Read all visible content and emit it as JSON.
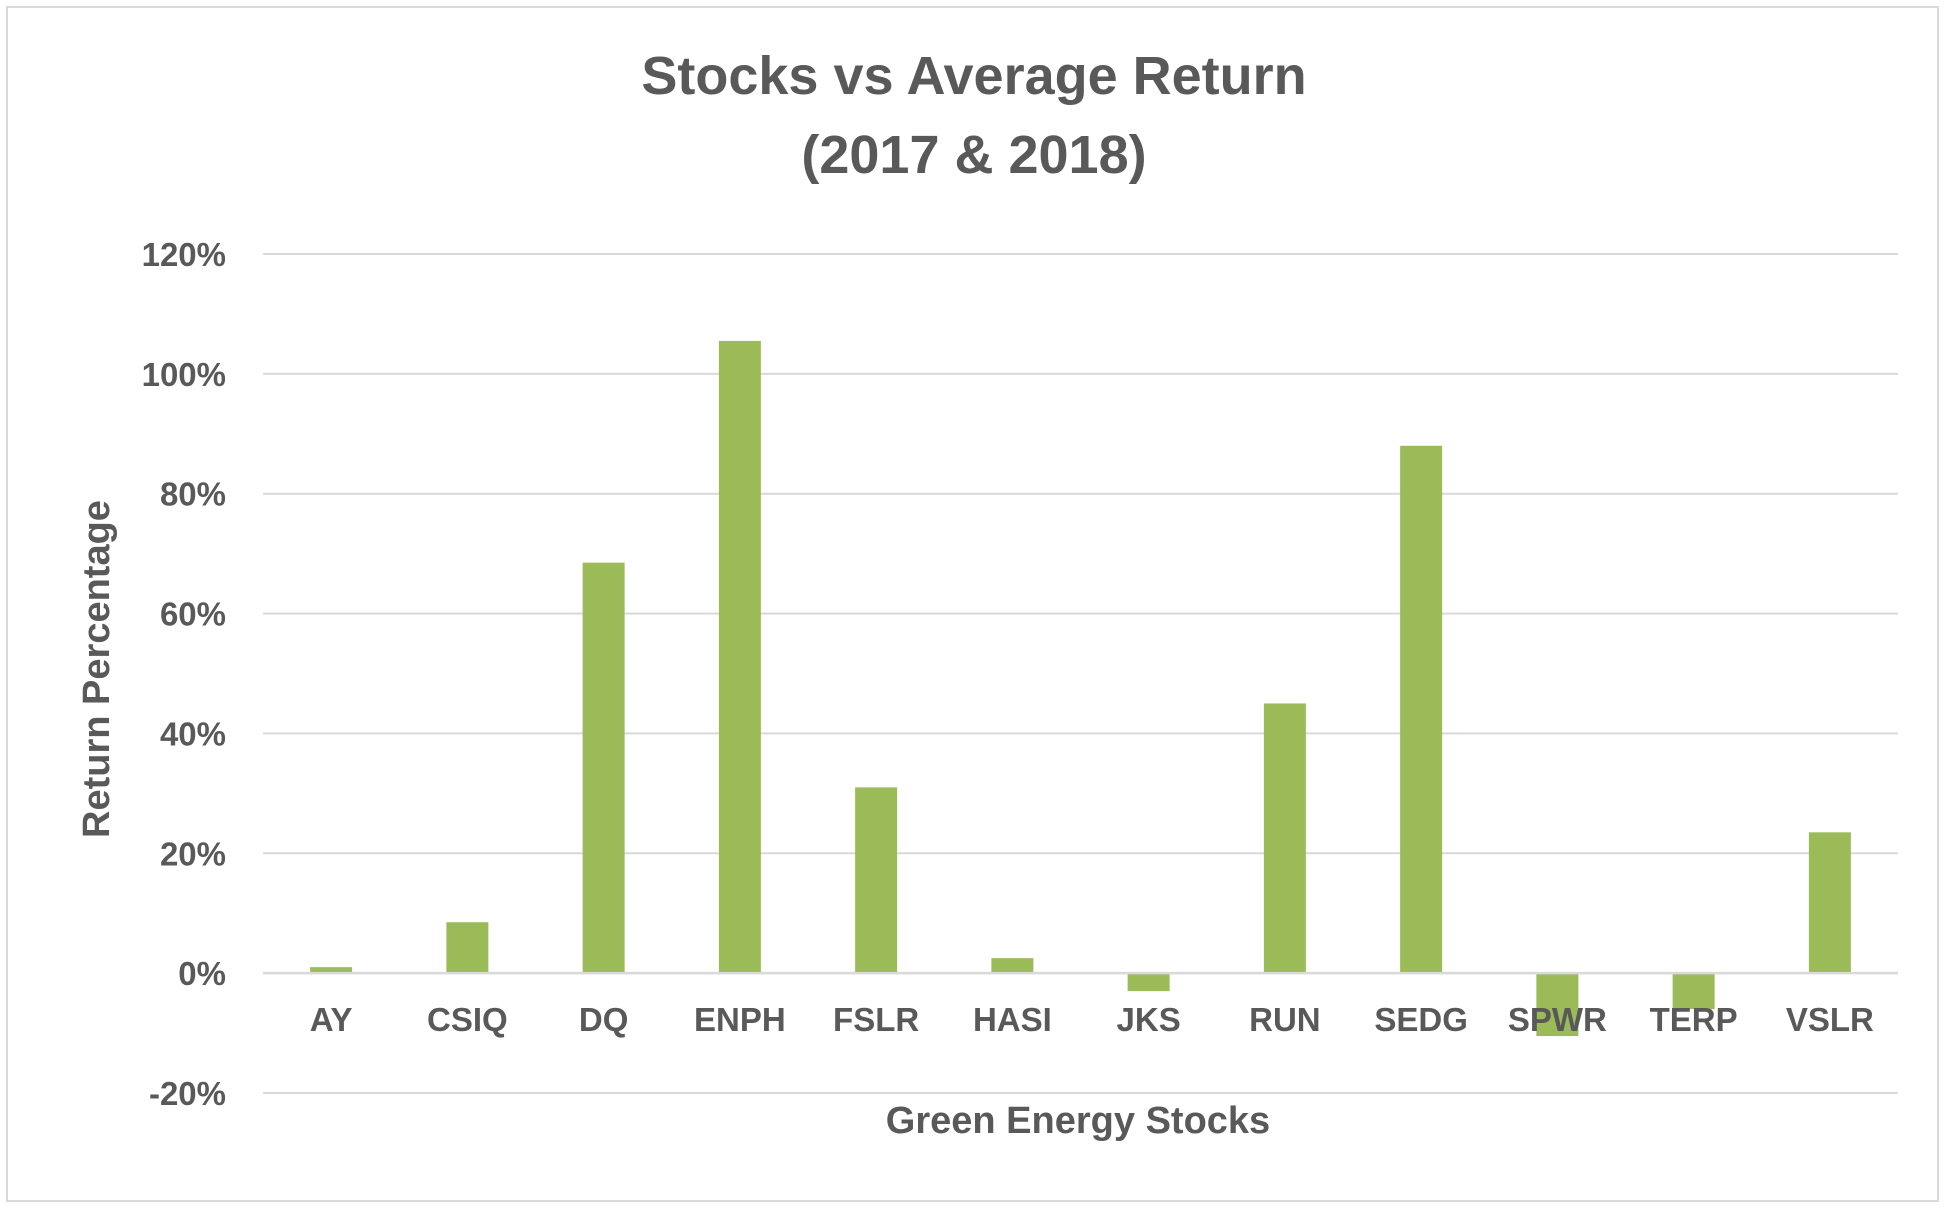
{
  "chart_data": {
    "type": "bar",
    "title": [
      "Stocks vs Average Return",
      "(2017 & 2018)"
    ],
    "xlabel": "Green Energy Stocks",
    "ylabel": "Return Percentage",
    "categories": [
      "AY",
      "CSIQ",
      "DQ",
      "ENPH",
      "FSLR",
      "HASI",
      "JKS",
      "RUN",
      "SEDG",
      "SPWR",
      "TERP",
      "VSLR"
    ],
    "values": [
      1,
      8.5,
      68.5,
      105.5,
      31,
      2.5,
      -3,
      45,
      88,
      -10.5,
      -6,
      23.5
    ],
    "value_unit": "%",
    "ylim": [
      -20,
      120
    ],
    "yticks": [
      -20,
      0,
      20,
      40,
      60,
      80,
      100,
      120
    ],
    "ytick_labels": [
      "-20%",
      "0%",
      "20%",
      "40%",
      "60%",
      "80%",
      "100%",
      "120%"
    ],
    "grid": true,
    "legend": "none",
    "bar_color": "#9bbb59",
    "text_color": "#595959",
    "gridline_color": "#d9d9d9"
  }
}
